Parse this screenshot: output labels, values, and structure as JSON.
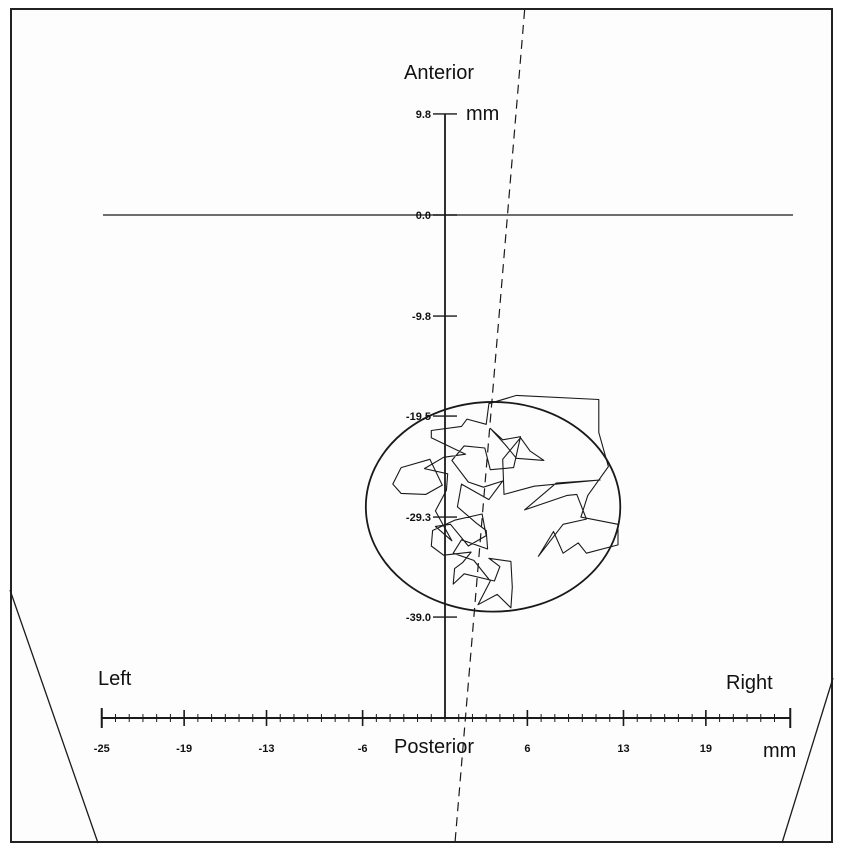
{
  "chart_data": {
    "type": "scatter",
    "title": "",
    "labels": {
      "top": "Anterior",
      "bottom": "Posterior",
      "left": "Left",
      "right": "Right",
      "y_unit": "mm",
      "x_unit": "mm"
    },
    "y_ticks": [
      {
        "value": 9.8,
        "label": "9.8"
      },
      {
        "value": 0.0,
        "label": "0.0"
      },
      {
        "value": -9.8,
        "label": "-9.8"
      },
      {
        "value": -19.5,
        "label": "-19.5"
      },
      {
        "value": -29.3,
        "label": "-29.3"
      },
      {
        "value": -39.0,
        "label": "-39.0"
      }
    ],
    "x_ticks": [
      {
        "value": -25,
        "label": "-25"
      },
      {
        "value": -19,
        "label": "-19"
      },
      {
        "value": -13,
        "label": "-13"
      },
      {
        "value": -6,
        "label": "-6"
      },
      {
        "value": 6,
        "label": "6"
      },
      {
        "value": 13,
        "label": "13"
      },
      {
        "value": 19,
        "label": "19"
      }
    ],
    "xlim": [
      -25,
      25
    ],
    "ylim": [
      -49.5,
      9.8
    ],
    "circle": {
      "cx": 3.5,
      "cy": -28.3,
      "r": 11.3
    },
    "reference_line": {
      "x_at_top": 5.8,
      "x_at_bottom": 1.6
    },
    "path": [
      [
        5.2,
        -17.5
      ],
      [
        11.2,
        -17.9
      ],
      [
        11.2,
        -21.1
      ],
      [
        11.9,
        -24.4
      ],
      [
        10.4,
        -27.2
      ],
      [
        9.9,
        -29.3
      ],
      [
        12.6,
        -30.0
      ],
      [
        12.6,
        -32.0
      ],
      [
        10.3,
        -32.8
      ],
      [
        9.7,
        -31.8
      ],
      [
        8.6,
        -32.8
      ],
      [
        7.9,
        -30.7
      ],
      [
        6.8,
        -33.1
      ],
      [
        8.6,
        -30.0
      ],
      [
        10.3,
        -29.5
      ],
      [
        9.6,
        -27.1
      ],
      [
        8.9,
        -27.2
      ],
      [
        5.8,
        -28.6
      ],
      [
        8.1,
        -26.0
      ],
      [
        11.3,
        -25.7
      ],
      [
        6.5,
        -26.3
      ],
      [
        4.3,
        -27.1
      ],
      [
        4.2,
        -23.7
      ],
      [
        5.5,
        -21.6
      ],
      [
        6.2,
        -22.9
      ],
      [
        7.2,
        -23.8
      ],
      [
        5.2,
        -23.6
      ],
      [
        4.4,
        -22.3
      ],
      [
        3.3,
        -20.7
      ],
      [
        4.2,
        -21.8
      ],
      [
        5.5,
        -21.5
      ],
      [
        5.0,
        -24.5
      ],
      [
        3.3,
        -24.7
      ],
      [
        2.9,
        -22.6
      ],
      [
        1.4,
        -22.4
      ],
      [
        0.5,
        -23.8
      ],
      [
        1.7,
        -25.9
      ],
      [
        2.8,
        -26.4
      ],
      [
        4.2,
        -25.8
      ],
      [
        3.2,
        -27.6
      ],
      [
        1.2,
        -26.1
      ],
      [
        0.9,
        -28.3
      ],
      [
        2.3,
        -29.9
      ],
      [
        3.0,
        -30.6
      ],
      [
        3.1,
        -32.4
      ],
      [
        1.2,
        -31.5
      ],
      [
        0.6,
        -32.8
      ],
      [
        2.1,
        -33.5
      ],
      [
        3.3,
        -35.5
      ],
      [
        2.4,
        -37.8
      ],
      [
        3.8,
        -36.8
      ],
      [
        4.8,
        -38.1
      ],
      [
        4.9,
        -36.1
      ],
      [
        4.8,
        -33.6
      ],
      [
        3.2,
        -33.3
      ],
      [
        4.0,
        -34.1
      ],
      [
        3.6,
        -35.5
      ],
      [
        1.4,
        -34.8
      ],
      [
        0.6,
        -35.8
      ],
      [
        0.7,
        -34.3
      ],
      [
        1.3,
        -33.7
      ],
      [
        1.9,
        -32.7
      ],
      [
        -0.1,
        -33.0
      ],
      [
        -1.0,
        -32.1
      ],
      [
        -0.9,
        -30.6
      ],
      [
        0.7,
        -29.6
      ],
      [
        2.7,
        -29.0
      ],
      [
        3.0,
        -31.1
      ],
      [
        1.7,
        -32.1
      ],
      [
        0.4,
        -30.0
      ],
      [
        -0.7,
        -30.2
      ],
      [
        0.5,
        -31.6
      ],
      [
        -0.7,
        -28.7
      ],
      [
        0.1,
        -26.7
      ],
      [
        0.2,
        -25.1
      ],
      [
        -1.5,
        -24.6
      ],
      [
        -0.1,
        -23.5
      ],
      [
        1.5,
        -23.2
      ],
      [
        -1.0,
        -21.6
      ],
      [
        -1.0,
        -20.9
      ],
      [
        1.2,
        -20.5
      ],
      [
        1.6,
        -19.8
      ],
      [
        3.0,
        -20.3
      ],
      [
        3.2,
        -18.3
      ],
      [
        5.2,
        -17.5
      ]
    ],
    "polygon": [
      [
        -3.2,
        -24.5
      ],
      [
        -1.1,
        -23.7
      ],
      [
        -0.2,
        -26.2
      ],
      [
        -1.4,
        -27.1
      ],
      [
        -3.2,
        -27.0
      ],
      [
        -3.8,
        -26.1
      ],
      [
        -3.2,
        -24.5
      ]
    ]
  }
}
